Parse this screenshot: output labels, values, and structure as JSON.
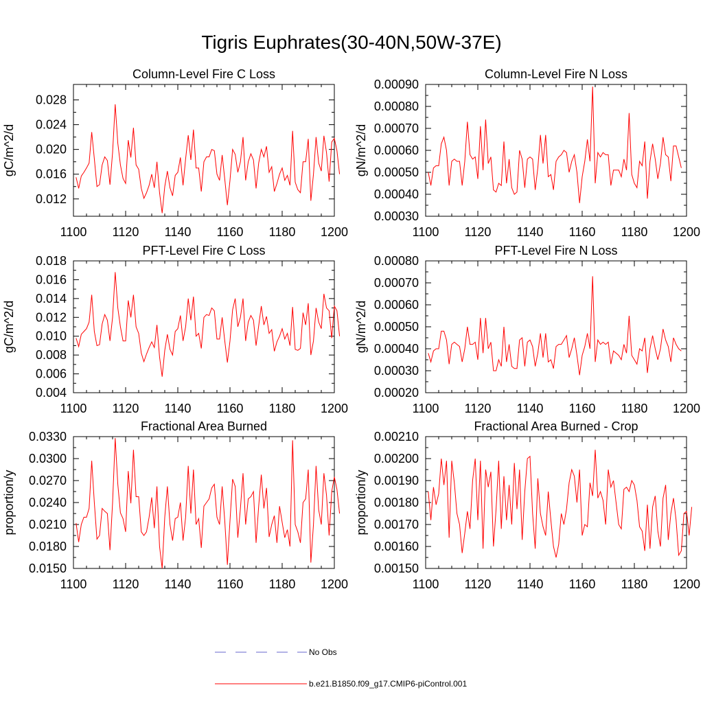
{
  "title": "Tigris Euphrates(30-40N,50W-37E)",
  "legend": [
    {
      "label": "No Obs",
      "color": "#6666cc",
      "style": "dashed"
    },
    {
      "label": "b.e21.B1850.f09_g17.CMIP6-piControl.001",
      "color": "#ff0000",
      "style": "solid"
    }
  ],
  "chart_data": [
    {
      "type": "line",
      "title": "Column-Level Fire C Loss",
      "ylabel": "gC/m^2/d",
      "xlim": [
        1100,
        1200
      ],
      "ylim": [
        0.0092,
        0.0305
      ],
      "xticks": [
        "1100",
        "1120",
        "1140",
        "1160",
        "1180",
        "1200"
      ],
      "yticks": [
        "0.012",
        "0.016",
        "0.020",
        "0.024",
        "0.028"
      ],
      "x_start": 1101,
      "series": [
        {
          "color": "#ff0000",
          "values": [
            0.0155,
            0.0137,
            0.0157,
            0.0163,
            0.017,
            0.0178,
            0.0228,
            0.0185,
            0.014,
            0.0143,
            0.0175,
            0.0188,
            0.0182,
            0.0143,
            0.0195,
            0.0273,
            0.021,
            0.0175,
            0.0153,
            0.0145,
            0.0215,
            0.0187,
            0.0235,
            0.0175,
            0.0168,
            0.0137,
            0.0121,
            0.013,
            0.0142,
            0.016,
            0.0138,
            0.018,
            0.013,
            0.0097,
            0.014,
            0.0165,
            0.0138,
            0.0125,
            0.0158,
            0.0163,
            0.0187,
            0.0142,
            0.0185,
            0.0223,
            0.0183,
            0.0232,
            0.017,
            0.017,
            0.0132,
            0.018,
            0.0188,
            0.0188,
            0.02,
            0.0198,
            0.016,
            0.015,
            0.0191,
            0.0152,
            0.011,
            0.015,
            0.02,
            0.0192,
            0.0163,
            0.018,
            0.022,
            0.015,
            0.018,
            0.0193,
            0.0183,
            0.0137,
            0.0178,
            0.02,
            0.0188,
            0.0205,
            0.0163,
            0.0172,
            0.0132,
            0.0145,
            0.016,
            0.017,
            0.015,
            0.0158,
            0.0142,
            0.023,
            0.0147,
            0.0135,
            0.013,
            0.018,
            0.018,
            0.0217,
            0.0117,
            0.016,
            0.022,
            0.0178,
            0.0165,
            0.0222,
            0.0195,
            0.0148,
            0.0212,
            0.0218,
            0.0198,
            0.016
          ]
        }
      ]
    },
    {
      "type": "line",
      "title": "Column-Level Fire N Loss",
      "ylabel": "gN/m^2/d",
      "xlim": [
        1100,
        1200
      ],
      "ylim": [
        0.0003,
        0.0009
      ],
      "xticks": [
        "1100",
        "1120",
        "1140",
        "1160",
        "1180",
        "1200"
      ],
      "yticks": [
        "0.00030",
        "0.00040",
        "0.00050",
        "0.00060",
        "0.00070",
        "0.00080",
        "0.00090"
      ],
      "x_start": 1101,
      "series": [
        {
          "color": "#ff0000",
          "values": [
            0.0005,
            0.00044,
            0.00052,
            0.00053,
            0.00053,
            0.00063,
            0.00066,
            0.0006,
            0.00044,
            0.00055,
            0.00056,
            0.00055,
            0.00055,
            0.00044,
            0.00055,
            0.00073,
            0.00058,
            0.00056,
            0.00057,
            0.00047,
            0.00071,
            0.00051,
            0.00074,
            0.00054,
            0.00057,
            0.00042,
            0.00041,
            0.00045,
            0.00044,
            0.00064,
            0.00045,
            0.00056,
            0.00043,
            0.0004,
            0.00041,
            0.0006,
            0.00056,
            0.00043,
            0.00056,
            0.00057,
            0.00056,
            0.00042,
            0.00052,
            0.00067,
            0.00054,
            0.00067,
            0.00048,
            0.00049,
            0.00042,
            0.00055,
            0.00057,
            0.00058,
            0.0006,
            0.00059,
            0.0005,
            0.00055,
            0.00058,
            0.0005,
            0.00036,
            0.00048,
            0.00055,
            0.00065,
            0.00055,
            0.00089,
            0.00045,
            0.00059,
            0.00057,
            0.00059,
            0.00058,
            0.00058,
            0.00044,
            0.00051,
            0.00051,
            0.00051,
            0.00048,
            0.00056,
            0.00051,
            0.00077,
            0.00049,
            0.00045,
            0.00043,
            0.00055,
            0.00053,
            0.00064,
            0.00038,
            0.00055,
            0.00063,
            0.00056,
            0.00047,
            0.00054,
            0.00066,
            0.00058,
            0.00057,
            0.00046,
            0.00062,
            0.00062,
            0.00057,
            0.00052
          ]
        }
      ]
    },
    {
      "type": "line",
      "title": "PFT-Level Fire C Loss",
      "ylabel": "gC/m^2/d",
      "xlim": [
        1100,
        1200
      ],
      "ylim": [
        0.004,
        0.018
      ],
      "xticks": [
        "1100",
        "1120",
        "1140",
        "1160",
        "1180",
        "1200"
      ],
      "yticks": [
        "0.004",
        "0.006",
        "0.008",
        "0.010",
        "0.012",
        "0.014",
        "0.016",
        "0.018"
      ],
      "x_start": 1101,
      "series": [
        {
          "color": "#ff0000",
          "values": [
            0.0098,
            0.0089,
            0.0102,
            0.0105,
            0.0108,
            0.0115,
            0.0144,
            0.0105,
            0.009,
            0.0091,
            0.0113,
            0.0123,
            0.0117,
            0.0095,
            0.012,
            0.0168,
            0.013,
            0.011,
            0.0095,
            0.0095,
            0.0138,
            0.012,
            0.0144,
            0.011,
            0.0103,
            0.0082,
            0.0073,
            0.0081,
            0.0088,
            0.0094,
            0.0088,
            0.0112,
            0.0078,
            0.0057,
            0.0085,
            0.0102,
            0.0086,
            0.008,
            0.0105,
            0.0108,
            0.0122,
            0.0095,
            0.011,
            0.014,
            0.0117,
            0.0142,
            0.01,
            0.0103,
            0.0087,
            0.012,
            0.0123,
            0.0122,
            0.013,
            0.0127,
            0.0097,
            0.0097,
            0.012,
            0.0095,
            0.0072,
            0.0095,
            0.0128,
            0.014,
            0.011,
            0.012,
            0.014,
            0.0095,
            0.0115,
            0.0122,
            0.0117,
            0.009,
            0.0111,
            0.0132,
            0.0112,
            0.0121,
            0.0103,
            0.0107,
            0.0084,
            0.0094,
            0.01,
            0.0108,
            0.0097,
            0.0103,
            0.009,
            0.0131,
            0.0086,
            0.0085,
            0.0087,
            0.0125,
            0.0112,
            0.0135,
            0.008,
            0.0095,
            0.013,
            0.0115,
            0.0108,
            0.0145,
            0.013,
            0.0127,
            0.0098,
            0.0132,
            0.0127,
            0.01
          ]
        }
      ]
    },
    {
      "type": "line",
      "title": "PFT-Level Fire N Loss",
      "ylabel": "gN/m^2/d",
      "xlim": [
        1100,
        1200
      ],
      "ylim": [
        0.0002,
        0.0008
      ],
      "xticks": [
        "1100",
        "1120",
        "1140",
        "1160",
        "1180",
        "1200"
      ],
      "yticks": [
        "0.00020",
        "0.00030",
        "0.00040",
        "0.00050",
        "0.00060",
        "0.00070",
        "0.00080"
      ],
      "x_start": 1101,
      "series": [
        {
          "color": "#ff0000",
          "values": [
            0.00038,
            0.00034,
            0.00039,
            0.0004,
            0.0004,
            0.00048,
            0.00048,
            0.00044,
            0.00033,
            0.00042,
            0.00043,
            0.00042,
            0.00041,
            0.00034,
            0.0004,
            0.0005,
            0.00042,
            0.00042,
            0.00043,
            0.00035,
            0.00054,
            0.00038,
            0.00054,
            0.0004,
            0.00043,
            0.0003,
            0.0003,
            0.00035,
            0.00032,
            0.0005,
            0.00034,
            0.00042,
            0.00032,
            0.00031,
            0.00031,
            0.00044,
            0.00045,
            0.00032,
            0.00043,
            0.00044,
            0.00041,
            0.00032,
            0.00038,
            0.00047,
            0.00036,
            0.00047,
            0.00034,
            0.00035,
            0.00031,
            0.00041,
            0.00042,
            0.00042,
            0.00044,
            0.00046,
            0.00036,
            0.0004,
            0.00045,
            0.00037,
            0.00028,
            0.00037,
            0.00041,
            0.00047,
            0.0004,
            0.00073,
            0.00034,
            0.00044,
            0.00042,
            0.00043,
            0.00042,
            0.00043,
            0.00033,
            0.00039,
            0.00038,
            0.00037,
            0.00035,
            0.00042,
            0.00038,
            0.00055,
            0.00037,
            0.00035,
            0.00033,
            0.0004,
            0.00039,
            0.00045,
            0.00029,
            0.0004,
            0.00046,
            0.0004,
            0.00035,
            0.0004,
            0.00049,
            0.00044,
            0.00041,
            0.00034,
            0.00045,
            0.00042,
            0.0004,
            0.00039
          ]
        }
      ]
    },
    {
      "type": "line",
      "title": "Fractional Area Burned",
      "ylabel": "proportion/y",
      "xlim": [
        1100,
        1200
      ],
      "ylim": [
        0.015,
        0.033
      ],
      "xticks": [
        "1100",
        "1120",
        "1140",
        "1160",
        "1180",
        "1200"
      ],
      "yticks": [
        "0.0150",
        "0.0180",
        "0.0210",
        "0.0240",
        "0.0270",
        "0.0300",
        "0.0330"
      ],
      "x_start": 1101,
      "series": [
        {
          "color": "#ff0000",
          "values": [
            0.0212,
            0.0186,
            0.021,
            0.022,
            0.022,
            0.0232,
            0.0297,
            0.024,
            0.019,
            0.0195,
            0.0232,
            0.0228,
            0.0225,
            0.0175,
            0.024,
            0.0328,
            0.0265,
            0.0226,
            0.0218,
            0.02,
            0.0283,
            0.0239,
            0.0312,
            0.0248,
            0.0248,
            0.02,
            0.0195,
            0.02,
            0.022,
            0.0247,
            0.0205,
            0.0262,
            0.018,
            0.015,
            0.022,
            0.0262,
            0.021,
            0.0188,
            0.0218,
            0.022,
            0.024,
            0.0188,
            0.022,
            0.029,
            0.0225,
            0.0285,
            0.021,
            0.0218,
            0.0178,
            0.0235,
            0.024,
            0.0245,
            0.026,
            0.0265,
            0.022,
            0.021,
            0.0262,
            0.0215,
            0.0155,
            0.0215,
            0.0272,
            0.0262,
            0.0192,
            0.0232,
            0.028,
            0.021,
            0.0245,
            0.0248,
            0.0255,
            0.0185,
            0.0235,
            0.0278,
            0.0232,
            0.026,
            0.0193,
            0.021,
            0.0222,
            0.0185,
            0.0235,
            0.0213,
            0.0192,
            0.0203,
            0.018,
            0.0325,
            0.021,
            0.02,
            0.0185,
            0.024,
            0.0245,
            0.0285,
            0.0158,
            0.021,
            0.029,
            0.023,
            0.021,
            0.028,
            0.025,
            0.0195,
            0.0255,
            0.0275,
            0.0258,
            0.0225
          ]
        }
      ]
    },
    {
      "type": "line",
      "title": "Fractional Area Burned - Crop",
      "ylabel": "proportion/y",
      "xlim": [
        1100,
        1200
      ],
      "ylim": [
        0.0015,
        0.0021
      ],
      "xticks": [
        "1100",
        "1120",
        "1140",
        "1160",
        "1180",
        "1200"
      ],
      "yticks": [
        "0.00150",
        "0.00160",
        "0.00170",
        "0.00180",
        "0.00190",
        "0.00200",
        "0.00210"
      ],
      "x_start": 1101,
      "series": [
        {
          "color": "#ff0000",
          "values": [
            0.00185,
            0.00172,
            0.00187,
            0.00179,
            0.00184,
            0.002,
            0.00188,
            0.00199,
            0.00164,
            0.00199,
            0.00189,
            0.00175,
            0.0017,
            0.00157,
            0.00166,
            0.00176,
            0.00168,
            0.0019,
            0.002,
            0.00172,
            0.00199,
            0.00159,
            0.00195,
            0.00187,
            0.00194,
            0.0016,
            0.00177,
            0.00199,
            0.00168,
            0.00192,
            0.00172,
            0.00188,
            0.0017,
            0.00198,
            0.00177,
            0.00195,
            0.00163,
            0.00185,
            0.002,
            0.00201,
            0.00175,
            0.00159,
            0.00191,
            0.00175,
            0.00169,
            0.00165,
            0.00185,
            0.00172,
            0.0016,
            0.00155,
            0.00161,
            0.00175,
            0.0017,
            0.00177,
            0.00189,
            0.00195,
            0.00192,
            0.0018,
            0.00195,
            0.00165,
            0.0017,
            0.00169,
            0.00189,
            0.00183,
            0.00204,
            0.00182,
            0.00185,
            0.00181,
            0.0017,
            0.00195,
            0.00187,
            0.0019,
            0.0018,
            0.0017,
            0.00168,
            0.00186,
            0.00187,
            0.00185,
            0.0019,
            0.00188,
            0.00181,
            0.00169,
            0.00167,
            0.00158,
            0.00179,
            0.00159,
            0.00178,
            0.00183,
            0.00167,
            0.0016,
            0.00182,
            0.00188,
            0.00163,
            0.00175,
            0.00182,
            0.00172,
            0.00156,
            0.00158,
            0.00175,
            0.00176,
            0.00165,
            0.00178
          ]
        }
      ]
    }
  ]
}
